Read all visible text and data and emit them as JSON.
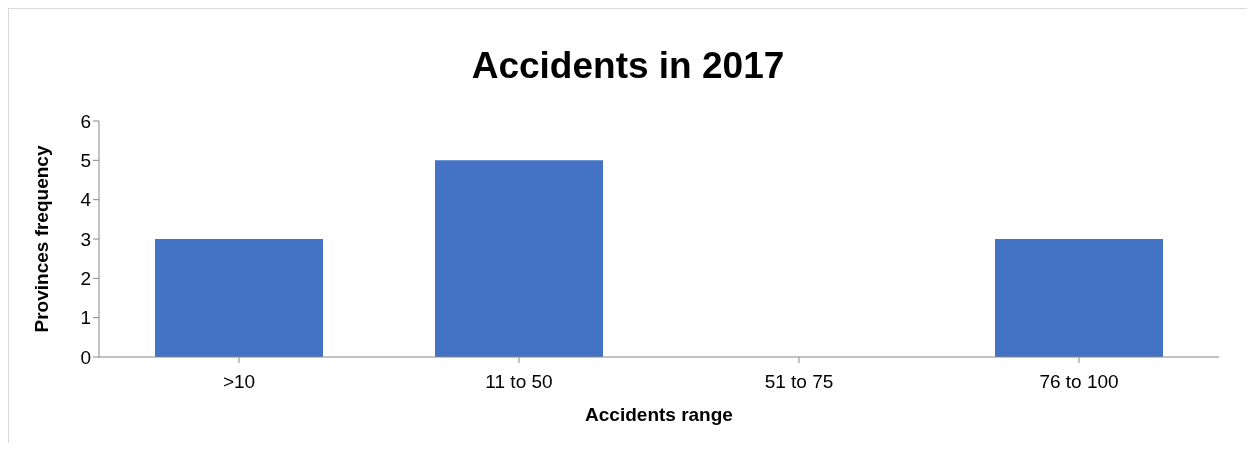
{
  "chart_data": {
    "type": "bar",
    "title": "Accidents in 2017",
    "xlabel": "Accidents range",
    "ylabel": "Provinces frequency",
    "categories": [
      ">10",
      "11 to 50",
      "51 to 75",
      "76 to 100"
    ],
    "values": [
      3,
      5,
      0,
      3
    ],
    "color": "#4472c4",
    "ylim": [
      0,
      6
    ],
    "yticks": [
      0,
      1,
      2,
      3,
      4,
      5,
      6
    ],
    "grid": false,
    "legend": false
  }
}
